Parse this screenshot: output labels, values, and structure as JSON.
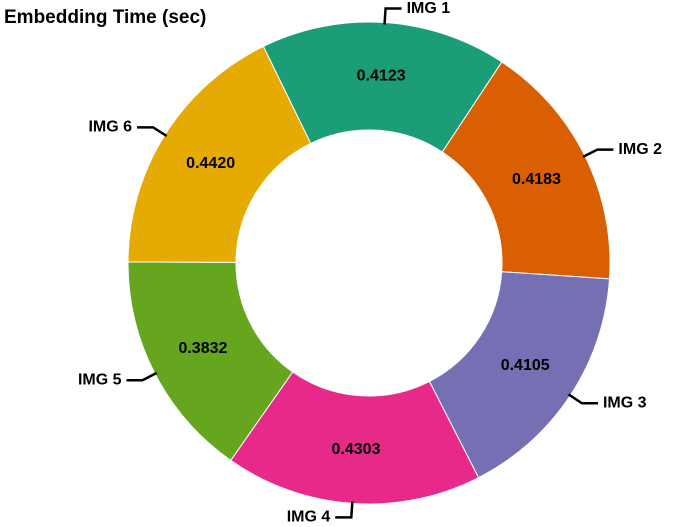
{
  "chart_data": {
    "type": "donut",
    "title": "Embedding Time (sec)",
    "categories": [
      "IMG 1",
      "IMG 2",
      "IMG 3",
      "IMG 4",
      "IMG 5",
      "IMG 6"
    ],
    "values": [
      0.4123,
      0.4183,
      0.4105,
      0.4303,
      0.3832,
      0.442
    ],
    "value_labels": [
      "0.4123",
      "0.4183",
      "0.4105",
      "0.4303",
      "0.3832",
      "0.4420"
    ],
    "colors": [
      "#1b9e77",
      "#d95f02",
      "#7570b3",
      "#e7298a",
      "#66a61e",
      "#e6ab02"
    ]
  }
}
